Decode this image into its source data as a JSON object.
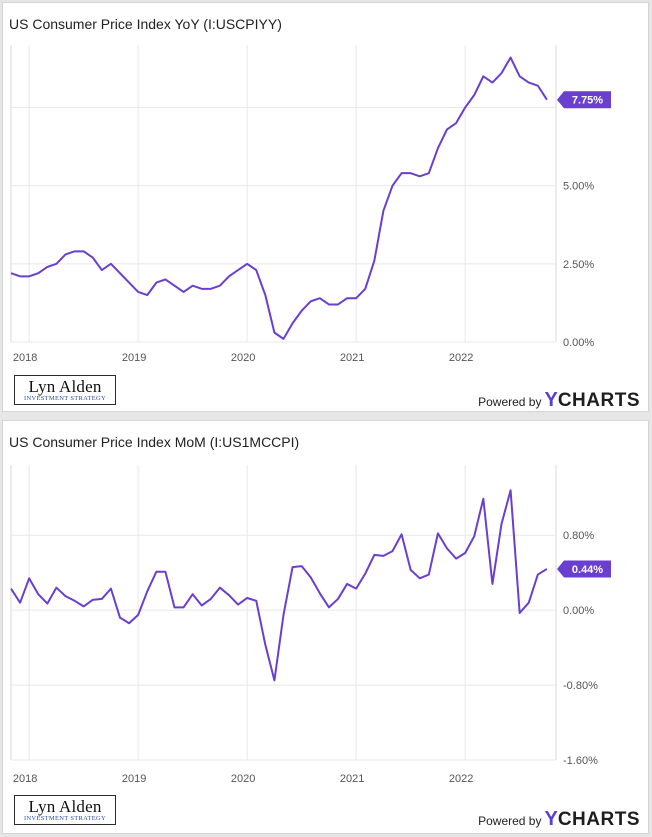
{
  "chart_data": [
    {
      "type": "line",
      "title": "US Consumer Price Index YoY (I:USCPIYY)",
      "xlabel": "",
      "ylabel": "",
      "x_ticks": [
        "2018",
        "2019",
        "2020",
        "2021",
        "2022"
      ],
      "y_ticks": [
        {
          "value": 0,
          "label": "0.00%"
        },
        {
          "value": 2.5,
          "label": "2.50%"
        },
        {
          "value": 5,
          "label": "5.00%"
        }
      ],
      "ylim": [
        0,
        9.5
      ],
      "xlim": [
        "2017-11",
        "2022-11"
      ],
      "grid": true,
      "series": [
        {
          "color": "#6a3fd0",
          "x": [
            "2017-11",
            "2017-12",
            "2018-01",
            "2018-02",
            "2018-03",
            "2018-04",
            "2018-05",
            "2018-06",
            "2018-07",
            "2018-08",
            "2018-09",
            "2018-10",
            "2018-11",
            "2018-12",
            "2019-01",
            "2019-02",
            "2019-03",
            "2019-04",
            "2019-05",
            "2019-06",
            "2019-07",
            "2019-08",
            "2019-09",
            "2019-10",
            "2019-11",
            "2019-12",
            "2020-01",
            "2020-02",
            "2020-03",
            "2020-04",
            "2020-05",
            "2020-06",
            "2020-07",
            "2020-08",
            "2020-09",
            "2020-10",
            "2020-11",
            "2020-12",
            "2021-01",
            "2021-02",
            "2021-03",
            "2021-04",
            "2021-05",
            "2021-06",
            "2021-07",
            "2021-08",
            "2021-09",
            "2021-10",
            "2021-11",
            "2021-12",
            "2022-01",
            "2022-02",
            "2022-03",
            "2022-04",
            "2022-05",
            "2022-06",
            "2022-07",
            "2022-08",
            "2022-09",
            "2022-10"
          ],
          "values": [
            2.2,
            2.1,
            2.1,
            2.2,
            2.4,
            2.5,
            2.8,
            2.9,
            2.9,
            2.7,
            2.3,
            2.5,
            2.2,
            1.9,
            1.6,
            1.5,
            1.9,
            2.0,
            1.8,
            1.6,
            1.8,
            1.7,
            1.7,
            1.8,
            2.1,
            2.3,
            2.5,
            2.3,
            1.5,
            0.3,
            0.1,
            0.6,
            1.0,
            1.3,
            1.4,
            1.2,
            1.2,
            1.4,
            1.4,
            1.7,
            2.6,
            4.2,
            5.0,
            5.4,
            5.4,
            5.3,
            5.4,
            6.2,
            6.8,
            7.0,
            7.5,
            7.9,
            8.5,
            8.3,
            8.6,
            9.1,
            8.5,
            8.3,
            8.2,
            7.75
          ]
        }
      ],
      "last_value_label": "7.75%"
    },
    {
      "type": "line",
      "title": "US Consumer Price Index MoM (I:US1MCCPI)",
      "xlabel": "",
      "ylabel": "",
      "x_ticks": [
        "2018",
        "2019",
        "2020",
        "2021",
        "2022"
      ],
      "y_ticks": [
        {
          "value": -1.6,
          "label": "-1.60%"
        },
        {
          "value": -0.8,
          "label": "-0.80%"
        },
        {
          "value": 0,
          "label": "0.00%"
        },
        {
          "value": 0.8,
          "label": "0.80%"
        }
      ],
      "ylim": [
        -1.6,
        1.55
      ],
      "xlim": [
        "2017-11",
        "2022-11"
      ],
      "grid": true,
      "series": [
        {
          "color": "#6a3fd0",
          "x": [
            "2017-11",
            "2017-12",
            "2018-01",
            "2018-02",
            "2018-03",
            "2018-04",
            "2018-05",
            "2018-06",
            "2018-07",
            "2018-08",
            "2018-09",
            "2018-10",
            "2018-11",
            "2018-12",
            "2019-01",
            "2019-02",
            "2019-03",
            "2019-04",
            "2019-05",
            "2019-06",
            "2019-07",
            "2019-08",
            "2019-09",
            "2019-10",
            "2019-11",
            "2019-12",
            "2020-01",
            "2020-02",
            "2020-03",
            "2020-04",
            "2020-05",
            "2020-06",
            "2020-07",
            "2020-08",
            "2020-09",
            "2020-10",
            "2020-11",
            "2020-12",
            "2021-01",
            "2021-02",
            "2021-03",
            "2021-04",
            "2021-05",
            "2021-06",
            "2021-07",
            "2021-08",
            "2021-09",
            "2021-10",
            "2021-11",
            "2021-12",
            "2022-01",
            "2022-02",
            "2022-03",
            "2022-04",
            "2022-05",
            "2022-06",
            "2022-07",
            "2022-08",
            "2022-09",
            "2022-10"
          ],
          "values": [
            0.23,
            0.08,
            0.34,
            0.17,
            0.07,
            0.24,
            0.15,
            0.1,
            0.04,
            0.11,
            0.12,
            0.23,
            -0.08,
            -0.14,
            -0.05,
            0.2,
            0.41,
            0.41,
            0.03,
            0.03,
            0.17,
            0.05,
            0.12,
            0.24,
            0.16,
            0.06,
            0.13,
            0.1,
            -0.37,
            -0.75,
            -0.05,
            0.46,
            0.47,
            0.35,
            0.18,
            0.03,
            0.12,
            0.28,
            0.23,
            0.39,
            0.59,
            0.58,
            0.63,
            0.81,
            0.43,
            0.34,
            0.38,
            0.82,
            0.66,
            0.55,
            0.61,
            0.79,
            1.19,
            0.28,
            0.92,
            1.28,
            -0.03,
            0.08,
            0.38,
            0.44
          ]
        }
      ],
      "last_value_label": "0.44%"
    }
  ],
  "branding": {
    "logo_name": "Lyn Alden",
    "logo_sub": "INVESTMENT STRATEGY",
    "powered_by": "Powered by",
    "ycharts_y": "Y",
    "ycharts_rest": "CHARTS"
  },
  "colors": {
    "series": "#6a3fd0",
    "grid": "#e8e8e8",
    "axis_text": "#555555",
    "badge_text": "#ffffff"
  }
}
